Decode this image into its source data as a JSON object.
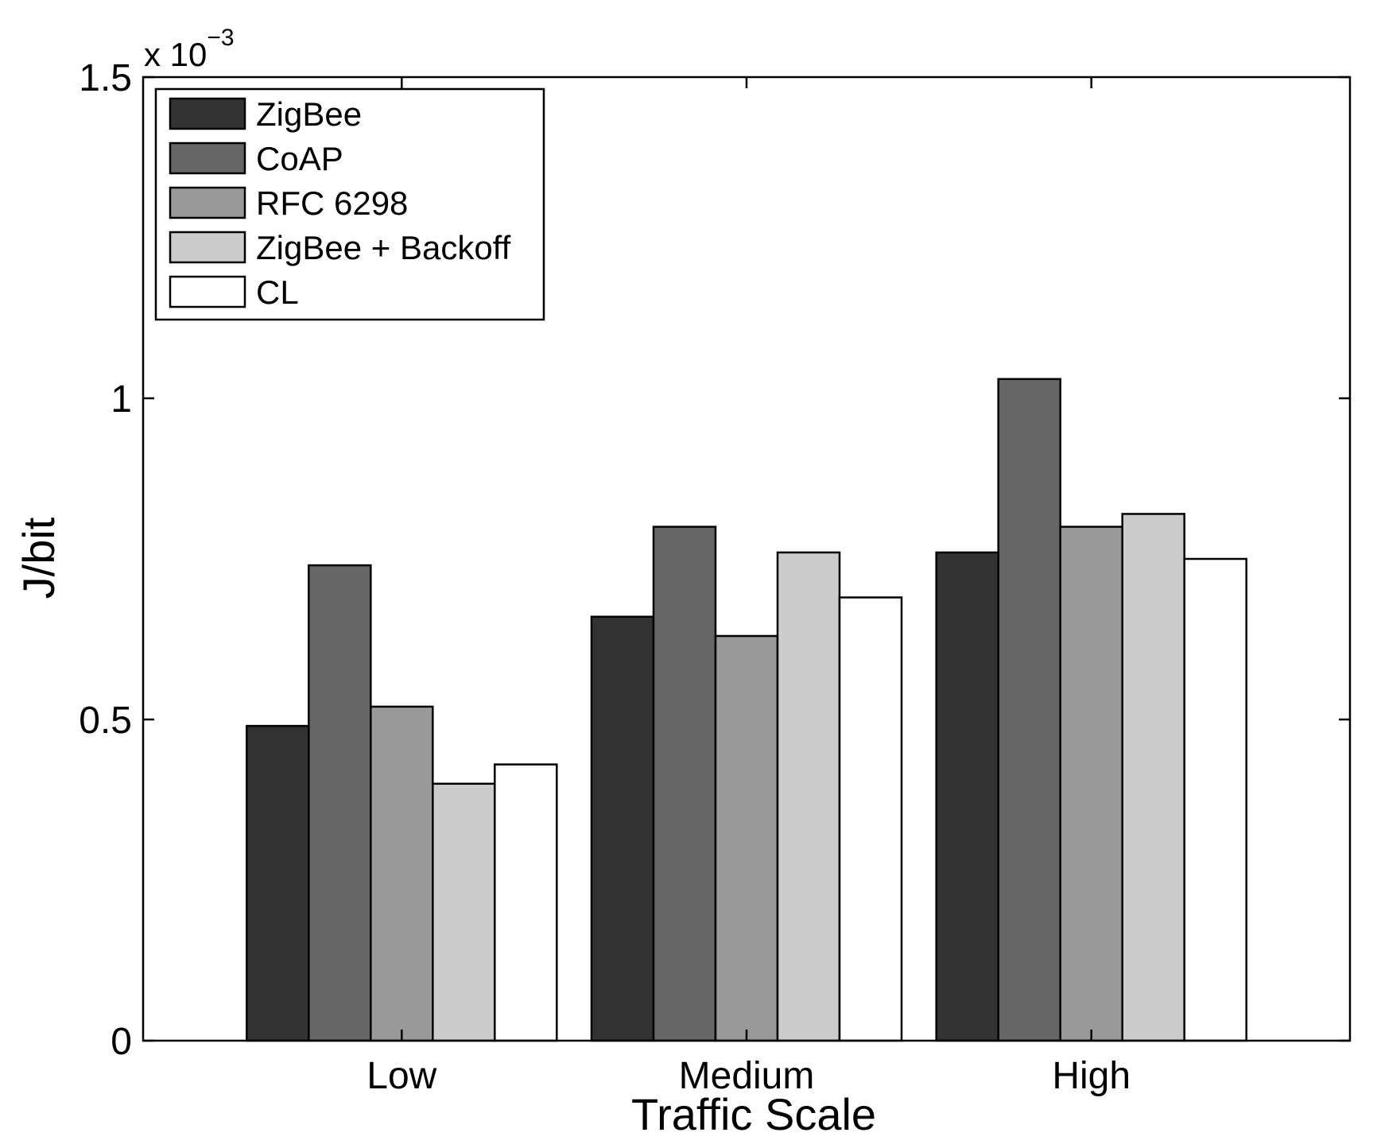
{
  "chart_data": {
    "type": "bar",
    "title": "",
    "xlabel": "Traffic Scale",
    "ylabel": "J/bit",
    "y_multiplier_base": "x 10",
    "y_multiplier_exponent": "−3",
    "categories": [
      "Low",
      "Medium",
      "High"
    ],
    "ylim": [
      0,
      1.5
    ],
    "y_ticks": [
      0,
      0.5,
      1,
      1.5
    ],
    "y_tick_labels": [
      "0",
      "0.5",
      "1",
      "1.5"
    ],
    "grid": false,
    "legend_position": "top-left",
    "series": [
      {
        "name": "ZigBee",
        "color": "#333333",
        "values": [
          0.49,
          0.66,
          0.76
        ]
      },
      {
        "name": "CoAP",
        "color": "#666666",
        "values": [
          0.74,
          0.8,
          1.03
        ]
      },
      {
        "name": "RFC 6298",
        "color": "#999999",
        "values": [
          0.52,
          0.63,
          0.8
        ]
      },
      {
        "name": "ZigBee + Backoff",
        "color": "#cccccc",
        "values": [
          0.4,
          0.76,
          0.82
        ]
      },
      {
        "name": "CL",
        "color": "#ffffff",
        "values": [
          0.43,
          0.69,
          0.75
        ]
      }
    ]
  }
}
